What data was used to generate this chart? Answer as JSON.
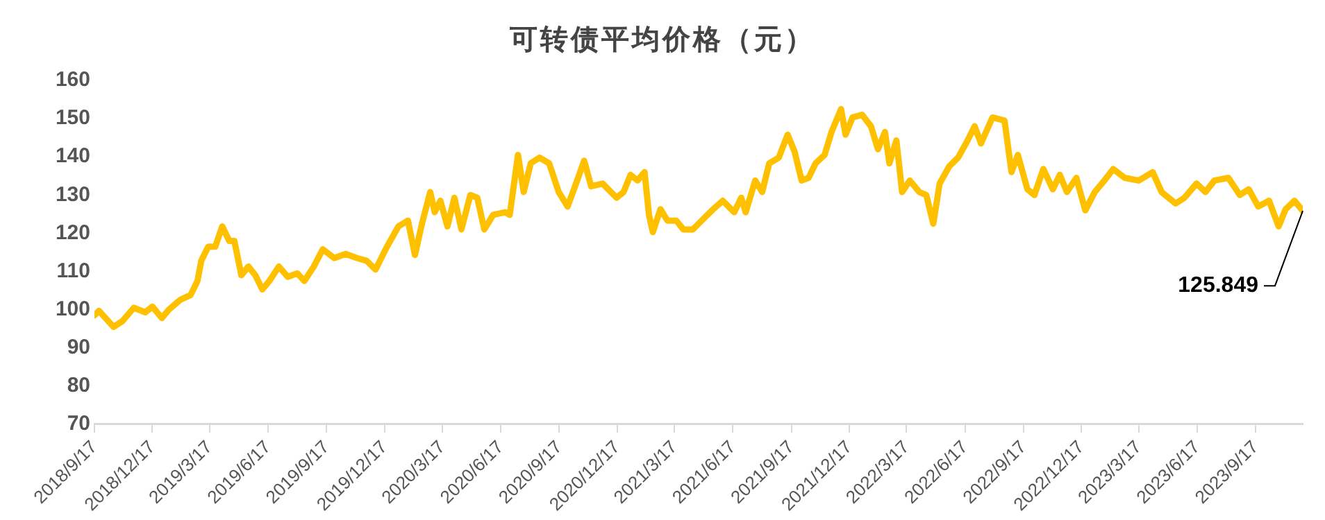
{
  "chart_data": {
    "type": "line",
    "title": "可转债平均价格（元）",
    "x": [
      "2018-09-17",
      "2018-09-24",
      "2018-10-17",
      "2018-10-31",
      "2018-11-18",
      "2018-12-06",
      "2018-12-17",
      "2019-01-01",
      "2019-01-12",
      "2019-01-30",
      "2019-02-15",
      "2019-02-26",
      "2019-03-04",
      "2019-03-15",
      "2019-03-26",
      "2019-04-06",
      "2019-04-17",
      "2019-04-25",
      "2019-05-06",
      "2019-05-17",
      "2019-05-28",
      "2019-06-08",
      "2019-06-19",
      "2019-07-04",
      "2019-07-18",
      "2019-08-02",
      "2019-08-13",
      "2019-08-28",
      "2019-09-11",
      "2019-09-29",
      "2019-10-17",
      "2019-11-04",
      "2019-11-19",
      "2019-12-03",
      "2019-12-21",
      "2020-01-08",
      "2020-01-23",
      "2020-02-03",
      "2020-02-14",
      "2020-02-27",
      "2020-03-05",
      "2020-03-14",
      "2020-03-25",
      "2020-04-05",
      "2020-04-16",
      "2020-04-30",
      "2020-05-11",
      "2020-05-22",
      "2020-06-05",
      "2020-06-24",
      "2020-07-01",
      "2020-07-14",
      "2020-07-23",
      "2020-08-03",
      "2020-08-17",
      "2020-09-01",
      "2020-09-16",
      "2020-09-30",
      "2020-10-15",
      "2020-10-26",
      "2020-11-06",
      "2020-11-24",
      "2020-12-16",
      "2020-12-27",
      "2021-01-07",
      "2021-01-18",
      "2021-01-29",
      "2021-02-05",
      "2021-02-11",
      "2021-02-23",
      "2021-03-06",
      "2021-03-20",
      "2021-03-31",
      "2021-04-15",
      "2021-05-03",
      "2021-05-17",
      "2021-06-01",
      "2021-06-19",
      "2021-06-30",
      "2021-07-07",
      "2021-07-22",
      "2021-08-02",
      "2021-08-13",
      "2021-08-28",
      "2021-09-11",
      "2021-09-22",
      "2021-10-03",
      "2021-10-14",
      "2021-10-25",
      "2021-11-08",
      "2021-11-19",
      "2021-12-04",
      "2021-12-11",
      "2021-12-22",
      "2022-01-06",
      "2022-01-20",
      "2022-01-31",
      "2022-02-11",
      "2022-02-18",
      "2022-03-01",
      "2022-03-10",
      "2022-03-22",
      "2022-04-06",
      "2022-04-17",
      "2022-04-28",
      "2022-05-08",
      "2022-05-23",
      "2022-06-06",
      "2022-06-21",
      "2022-07-02",
      "2022-07-12",
      "2022-07-30",
      "2022-08-18",
      "2022-08-29",
      "2022-09-08",
      "2022-09-23",
      "2022-10-04",
      "2022-10-18",
      "2022-11-02",
      "2022-11-13",
      "2022-11-24",
      "2022-12-09",
      "2022-12-23",
      "2023-01-07",
      "2023-01-22",
      "2023-02-05",
      "2023-02-23",
      "2023-03-17",
      "2023-04-08",
      "2023-04-22",
      "2023-05-14",
      "2023-05-28",
      "2023-06-16",
      "2023-06-30",
      "2023-07-14",
      "2023-08-05",
      "2023-08-23",
      "2023-09-06",
      "2023-09-21",
      "2023-10-08",
      "2023-10-23",
      "2023-11-03",
      "2023-11-17",
      "2023-11-30"
    ],
    "series": [
      {
        "color": "#ffc000",
        "values": [
          98.5,
          99.7,
          95.5,
          97,
          100.5,
          99.3,
          100.8,
          97.8,
          100,
          102.6,
          103.8,
          107.5,
          112.8,
          116.5,
          116.5,
          121.8,
          118,
          118,
          109,
          111.3,
          109,
          105.3,
          107.5,
          111.3,
          108.6,
          109.5,
          107.5,
          111.3,
          115.8,
          113.5,
          114.6,
          113.5,
          112.8,
          110.5,
          116.5,
          121.8,
          123.3,
          114.3,
          122.5,
          130.8,
          125.5,
          128.5,
          121.8,
          129.3,
          121,
          130,
          129.3,
          121,
          124.8,
          125.5,
          124.8,
          140.5,
          130.8,
          138.3,
          139.8,
          138.3,
          130.8,
          127,
          133.8,
          139,
          132.3,
          133,
          129.3,
          130.8,
          135.3,
          133.8,
          136,
          124.8,
          120.3,
          126.3,
          123.3,
          123.3,
          121,
          121,
          124,
          126.3,
          128.5,
          125.5,
          129.3,
          125.5,
          133.8,
          130.8,
          138.3,
          139.8,
          145.8,
          141.3,
          133.8,
          134.5,
          138.3,
          140.5,
          146.5,
          152.5,
          145.8,
          150.3,
          151,
          148,
          142,
          146.5,
          138.3,
          144.3,
          130.8,
          133.8,
          130.8,
          130,
          122.5,
          133,
          137.5,
          139.8,
          144.3,
          148,
          143.5,
          150.3,
          149.5,
          136,
          140.5,
          131.5,
          130,
          136.8,
          131.5,
          135.3,
          130.8,
          134.5,
          126,
          130.8,
          133.8,
          136.8,
          134.5,
          133.8,
          136,
          130.8,
          127.8,
          129.3,
          133,
          130.8,
          133.8,
          134.5,
          130,
          131.5,
          127,
          128.5,
          121.8,
          126.3,
          128.5,
          125.849
        ]
      }
    ],
    "xlim": [
      "2018-09-17",
      "2023-11-30"
    ],
    "xticks": [
      {
        "value": "2018-09-17",
        "label": "2018/9/17"
      },
      {
        "value": "2018-12-17",
        "label": "2018/12/17"
      },
      {
        "value": "2019-03-17",
        "label": "2019/3/17"
      },
      {
        "value": "2019-06-17",
        "label": "2019/6/17"
      },
      {
        "value": "2019-09-17",
        "label": "2019/9/17"
      },
      {
        "value": "2019-12-17",
        "label": "2019/12/17"
      },
      {
        "value": "2020-03-17",
        "label": "2020/3/17"
      },
      {
        "value": "2020-06-17",
        "label": "2020/6/17"
      },
      {
        "value": "2020-09-17",
        "label": "2020/9/17"
      },
      {
        "value": "2020-12-17",
        "label": "2020/12/17"
      },
      {
        "value": "2021-03-17",
        "label": "2021/3/17"
      },
      {
        "value": "2021-06-17",
        "label": "2021/6/17"
      },
      {
        "value": "2021-09-17",
        "label": "2021/9/17"
      },
      {
        "value": "2021-12-17",
        "label": "2021/12/17"
      },
      {
        "value": "2022-03-17",
        "label": "2022/3/17"
      },
      {
        "value": "2022-06-17",
        "label": "2022/6/17"
      },
      {
        "value": "2022-09-17",
        "label": "2022/9/17"
      },
      {
        "value": "2022-12-17",
        "label": "2022/12/17"
      },
      {
        "value": "2023-03-17",
        "label": "2023/3/17"
      },
      {
        "value": "2023-06-17",
        "label": "2023/6/17"
      },
      {
        "value": "2023-09-17",
        "label": "2023/9/17"
      }
    ],
    "ylim": [
      70,
      160
    ],
    "yticks": [
      70,
      80,
      90,
      100,
      110,
      120,
      130,
      140,
      150,
      160
    ],
    "annotations": [
      {
        "text": "125.849",
        "x": "2023-11-30",
        "y": 125.849
      }
    ],
    "grid": false,
    "legend": false,
    "marker": "none",
    "line_style": "solid"
  }
}
